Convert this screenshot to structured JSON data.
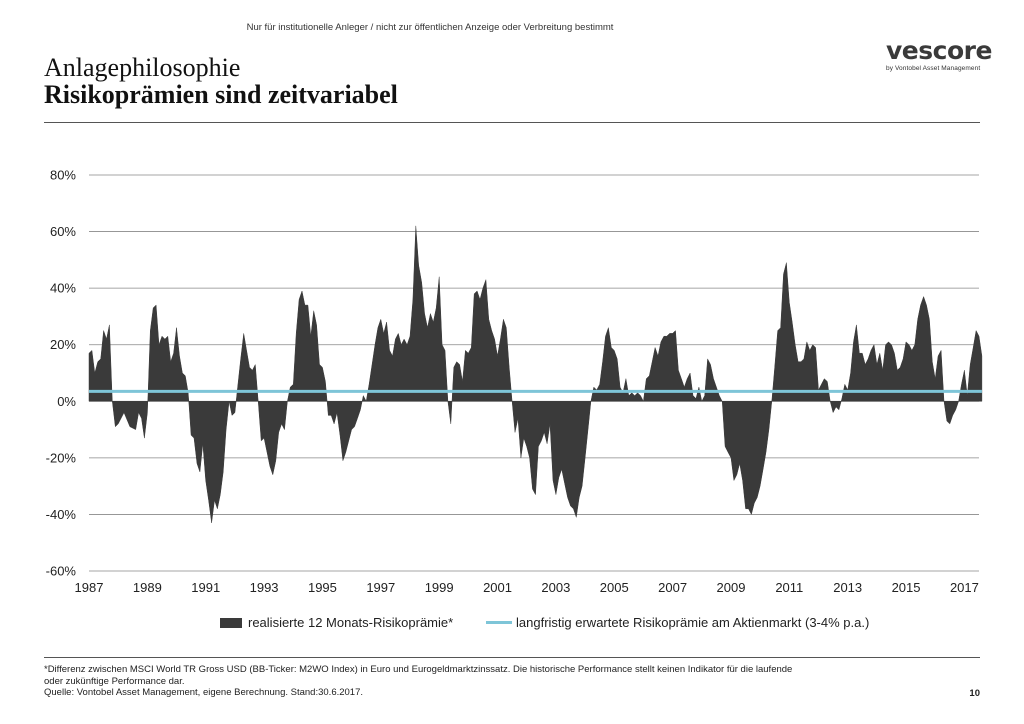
{
  "header": {
    "disclaimer": "Nur für institutionelle Anleger / nicht zur öffentlichen Anzeige oder Verbreitung bestimmt",
    "title": "Anlagephilosophie",
    "subtitle": "Risikoprämien sind zeitvariabel"
  },
  "logo": {
    "wordmark": "vescore",
    "tagline": "by Vontobel Asset Management"
  },
  "footer": {
    "footnote_line1": "*Differenz zwischen MSCI World TR Gross USD (BB-Ticker: M2WO Index) in Euro und Eurogeldmarktzinssatz. Die historische Performance stellt keinen Indikator für die laufende",
    "footnote_line2": "oder zukünftige Performance dar.",
    "source": "Quelle: Vontobel Asset Management, eigene Berechnung. Stand:30.6.2017.",
    "page_number": "10"
  },
  "colors": {
    "area": "#3a3a3a",
    "line": "#7ec5d8",
    "grid": "#888888"
  },
  "chart_data": {
    "type": "area",
    "title": "",
    "xlabel": "",
    "ylabel": "",
    "xlim": [
      1987,
      2017.5
    ],
    "ylim": [
      -60,
      80
    ],
    "x_ticks": [
      1987,
      1989,
      1991,
      1993,
      1995,
      1997,
      1999,
      2001,
      2003,
      2005,
      2007,
      2009,
      2011,
      2013,
      2015,
      2017
    ],
    "y_ticks": [
      -60,
      -40,
      -20,
      0,
      20,
      40,
      60,
      80
    ],
    "y_tick_labels": [
      "-60%",
      "-40%",
      "-20%",
      "0%",
      "20%",
      "40%",
      "60%",
      "80%"
    ],
    "grid": true,
    "legend_position": "bottom",
    "series": [
      {
        "name": "realisierte 12 Monats-Risikoprämie*",
        "type": "area",
        "points": [
          [
            1987.0,
            17
          ],
          [
            1987.1,
            18
          ],
          [
            1987.2,
            10
          ],
          [
            1987.3,
            14
          ],
          [
            1987.4,
            15
          ],
          [
            1987.5,
            25
          ],
          [
            1987.6,
            22
          ],
          [
            1987.7,
            27
          ],
          [
            1987.8,
            0
          ],
          [
            1987.9,
            -9
          ],
          [
            1988.0,
            -8
          ],
          [
            1988.2,
            -4
          ],
          [
            1988.4,
            -9
          ],
          [
            1988.6,
            -10
          ],
          [
            1988.7,
            -4
          ],
          [
            1988.8,
            -6
          ],
          [
            1988.9,
            -13
          ],
          [
            1989.0,
            -4
          ],
          [
            1989.1,
            25
          ],
          [
            1989.2,
            33
          ],
          [
            1989.3,
            34
          ],
          [
            1989.4,
            20
          ],
          [
            1989.5,
            23
          ],
          [
            1989.6,
            22
          ],
          [
            1989.7,
            23
          ],
          [
            1989.8,
            14
          ],
          [
            1989.9,
            17
          ],
          [
            1990.0,
            26
          ],
          [
            1990.1,
            16
          ],
          [
            1990.2,
            10
          ],
          [
            1990.3,
            9
          ],
          [
            1990.4,
            3
          ],
          [
            1990.5,
            -12
          ],
          [
            1990.6,
            -13
          ],
          [
            1990.7,
            -22
          ],
          [
            1990.8,
            -25
          ],
          [
            1990.9,
            -15
          ],
          [
            1991.0,
            -28
          ],
          [
            1991.1,
            -35
          ],
          [
            1991.2,
            -43
          ],
          [
            1991.3,
            -35
          ],
          [
            1991.4,
            -38
          ],
          [
            1991.5,
            -33
          ],
          [
            1991.6,
            -25
          ],
          [
            1991.7,
            -10
          ],
          [
            1991.8,
            0
          ],
          [
            1991.9,
            -5
          ],
          [
            1992.0,
            -4
          ],
          [
            1992.2,
            15
          ],
          [
            1992.3,
            24
          ],
          [
            1992.4,
            18
          ],
          [
            1992.5,
            12
          ],
          [
            1992.6,
            11
          ],
          [
            1992.7,
            13
          ],
          [
            1992.8,
            0
          ],
          [
            1992.9,
            -14
          ],
          [
            1993.0,
            -13
          ],
          [
            1993.2,
            -23
          ],
          [
            1993.3,
            -26
          ],
          [
            1993.4,
            -21
          ],
          [
            1993.5,
            -11
          ],
          [
            1993.6,
            -8
          ],
          [
            1993.7,
            -10
          ],
          [
            1993.8,
            0
          ],
          [
            1993.9,
            5
          ],
          [
            1994.0,
            6
          ],
          [
            1994.1,
            24
          ],
          [
            1994.2,
            36
          ],
          [
            1994.3,
            39
          ],
          [
            1994.4,
            34
          ],
          [
            1994.5,
            34
          ],
          [
            1994.6,
            23
          ],
          [
            1994.7,
            32
          ],
          [
            1994.8,
            27
          ],
          [
            1994.9,
            13
          ],
          [
            1995.0,
            12
          ],
          [
            1995.1,
            7
          ],
          [
            1995.2,
            -5
          ],
          [
            1995.3,
            -5
          ],
          [
            1995.4,
            -8
          ],
          [
            1995.5,
            -4
          ],
          [
            1995.6,
            -12
          ],
          [
            1995.7,
            -21
          ],
          [
            1995.8,
            -18
          ],
          [
            1995.9,
            -14
          ],
          [
            1996.0,
            -10
          ],
          [
            1996.1,
            -9
          ],
          [
            1996.2,
            -6
          ],
          [
            1996.3,
            -3
          ],
          [
            1996.4,
            2
          ],
          [
            1996.5,
            0
          ],
          [
            1996.6,
            6
          ],
          [
            1996.8,
            20
          ],
          [
            1996.9,
            26
          ],
          [
            1997.0,
            29
          ],
          [
            1997.1,
            24
          ],
          [
            1997.2,
            28
          ],
          [
            1997.3,
            18
          ],
          [
            1997.4,
            16
          ],
          [
            1997.5,
            22
          ],
          [
            1997.6,
            24
          ],
          [
            1997.7,
            20
          ],
          [
            1997.8,
            22
          ],
          [
            1997.9,
            20
          ],
          [
            1998.0,
            23
          ],
          [
            1998.1,
            36
          ],
          [
            1998.2,
            62
          ],
          [
            1998.3,
            48
          ],
          [
            1998.4,
            42
          ],
          [
            1998.5,
            31
          ],
          [
            1998.6,
            26
          ],
          [
            1998.7,
            31
          ],
          [
            1998.8,
            28
          ],
          [
            1998.9,
            33
          ],
          [
            1999.0,
            44
          ],
          [
            1999.1,
            20
          ],
          [
            1999.2,
            18
          ],
          [
            1999.3,
            0
          ],
          [
            1999.4,
            -8
          ],
          [
            1999.5,
            12
          ],
          [
            1999.6,
            14
          ],
          [
            1999.7,
            13
          ],
          [
            1999.8,
            7
          ],
          [
            1999.9,
            18
          ],
          [
            2000.0,
            17
          ],
          [
            2000.1,
            19
          ],
          [
            2000.2,
            38
          ],
          [
            2000.3,
            39
          ],
          [
            2000.4,
            36
          ],
          [
            2000.5,
            40
          ],
          [
            2000.6,
            43
          ],
          [
            2000.7,
            29
          ],
          [
            2000.8,
            25
          ],
          [
            2000.9,
            22
          ],
          [
            2001.0,
            16
          ],
          [
            2001.1,
            22
          ],
          [
            2001.2,
            29
          ],
          [
            2001.3,
            26
          ],
          [
            2001.4,
            12
          ],
          [
            2001.5,
            0
          ],
          [
            2001.6,
            -11
          ],
          [
            2001.7,
            -6
          ],
          [
            2001.8,
            -20
          ],
          [
            2001.9,
            -13
          ],
          [
            2002.0,
            -16
          ],
          [
            2002.1,
            -20
          ],
          [
            2002.2,
            -31
          ],
          [
            2002.3,
            -33
          ],
          [
            2002.4,
            -16
          ],
          [
            2002.5,
            -14
          ],
          [
            2002.6,
            -11
          ],
          [
            2002.7,
            -15
          ],
          [
            2002.8,
            -8
          ],
          [
            2002.9,
            -28
          ],
          [
            2003.0,
            -33
          ],
          [
            2003.1,
            -27
          ],
          [
            2003.2,
            -24
          ],
          [
            2003.3,
            -29
          ],
          [
            2003.4,
            -34
          ],
          [
            2003.5,
            -37
          ],
          [
            2003.6,
            -38
          ],
          [
            2003.7,
            -41
          ],
          [
            2003.8,
            -34
          ],
          [
            2003.9,
            -30
          ],
          [
            2004.0,
            -20
          ],
          [
            2004.1,
            -10
          ],
          [
            2004.2,
            0
          ],
          [
            2004.3,
            5
          ],
          [
            2004.4,
            4
          ],
          [
            2004.5,
            6
          ],
          [
            2004.6,
            14
          ],
          [
            2004.7,
            23
          ],
          [
            2004.8,
            26
          ],
          [
            2004.9,
            19
          ],
          [
            2005.0,
            18
          ],
          [
            2005.1,
            15
          ],
          [
            2005.2,
            5
          ],
          [
            2005.3,
            3
          ],
          [
            2005.4,
            8
          ],
          [
            2005.5,
            2
          ],
          [
            2005.6,
            3
          ],
          [
            2005.7,
            2
          ],
          [
            2005.8,
            3
          ],
          [
            2005.9,
            2
          ],
          [
            2006.0,
            0
          ],
          [
            2006.1,
            8
          ],
          [
            2006.2,
            9
          ],
          [
            2006.3,
            14
          ],
          [
            2006.4,
            19
          ],
          [
            2006.5,
            16
          ],
          [
            2006.6,
            21
          ],
          [
            2006.7,
            23
          ],
          [
            2006.8,
            23
          ],
          [
            2006.9,
            24
          ],
          [
            2007.0,
            24
          ],
          [
            2007.1,
            25
          ],
          [
            2007.2,
            11
          ],
          [
            2007.3,
            8
          ],
          [
            2007.4,
            5
          ],
          [
            2007.5,
            8
          ],
          [
            2007.6,
            10
          ],
          [
            2007.7,
            2
          ],
          [
            2007.8,
            1
          ],
          [
            2007.9,
            5
          ],
          [
            2008.0,
            0
          ],
          [
            2008.1,
            2
          ],
          [
            2008.2,
            15
          ],
          [
            2008.3,
            13
          ],
          [
            2008.4,
            8
          ],
          [
            2008.5,
            5
          ],
          [
            2008.6,
            2
          ],
          [
            2008.7,
            0
          ],
          [
            2008.8,
            -16
          ],
          [
            2008.9,
            -18
          ],
          [
            2009.0,
            -20
          ],
          [
            2009.1,
            -28
          ],
          [
            2009.2,
            -26
          ],
          [
            2009.3,
            -22
          ],
          [
            2009.4,
            -28
          ],
          [
            2009.5,
            -38
          ],
          [
            2009.6,
            -38
          ],
          [
            2009.7,
            -40
          ],
          [
            2009.8,
            -36
          ],
          [
            2009.9,
            -34
          ],
          [
            2010.0,
            -30
          ],
          [
            2010.1,
            -24
          ],
          [
            2010.2,
            -18
          ],
          [
            2010.3,
            -10
          ],
          [
            2010.4,
            0
          ],
          [
            2010.5,
            12
          ],
          [
            2010.6,
            25
          ],
          [
            2010.7,
            26
          ],
          [
            2010.8,
            45
          ],
          [
            2010.9,
            49
          ],
          [
            2011.0,
            35
          ],
          [
            2011.1,
            28
          ],
          [
            2011.2,
            20
          ],
          [
            2011.3,
            14
          ],
          [
            2011.4,
            14
          ],
          [
            2011.5,
            15
          ],
          [
            2011.6,
            21
          ],
          [
            2011.7,
            18
          ],
          [
            2011.8,
            20
          ],
          [
            2011.9,
            19
          ],
          [
            2012.0,
            4
          ],
          [
            2012.1,
            6
          ],
          [
            2012.2,
            8
          ],
          [
            2012.3,
            7
          ],
          [
            2012.4,
            0
          ],
          [
            2012.5,
            -4
          ],
          [
            2012.6,
            -2
          ],
          [
            2012.7,
            -3
          ],
          [
            2012.8,
            1
          ],
          [
            2012.9,
            6
          ],
          [
            2013.0,
            4
          ],
          [
            2013.1,
            10
          ],
          [
            2013.2,
            21
          ],
          [
            2013.3,
            27
          ],
          [
            2013.4,
            17
          ],
          [
            2013.5,
            17
          ],
          [
            2013.6,
            13
          ],
          [
            2013.7,
            15
          ],
          [
            2013.8,
            18
          ],
          [
            2013.9,
            20
          ],
          [
            2014.0,
            13
          ],
          [
            2014.1,
            17
          ],
          [
            2014.2,
            11
          ],
          [
            2014.3,
            20
          ],
          [
            2014.4,
            21
          ],
          [
            2014.5,
            20
          ],
          [
            2014.6,
            17
          ],
          [
            2014.7,
            11
          ],
          [
            2014.8,
            12
          ],
          [
            2014.9,
            15
          ],
          [
            2015.0,
            21
          ],
          [
            2015.1,
            20
          ],
          [
            2015.2,
            18
          ],
          [
            2015.3,
            20
          ],
          [
            2015.4,
            29
          ],
          [
            2015.5,
            34
          ],
          [
            2015.6,
            37
          ],
          [
            2015.7,
            34
          ],
          [
            2015.8,
            29
          ],
          [
            2015.9,
            14
          ],
          [
            2016.0,
            8
          ],
          [
            2016.1,
            16
          ],
          [
            2016.2,
            18
          ],
          [
            2016.3,
            0
          ],
          [
            2016.4,
            -7
          ],
          [
            2016.5,
            -8
          ],
          [
            2016.6,
            -5
          ],
          [
            2016.7,
            -3
          ],
          [
            2016.8,
            0
          ],
          [
            2016.9,
            6
          ],
          [
            2017.0,
            11
          ],
          [
            2017.1,
            2
          ],
          [
            2017.2,
            13
          ],
          [
            2017.3,
            19
          ],
          [
            2017.4,
            25
          ],
          [
            2017.5,
            23
          ],
          [
            2017.6,
            16
          ]
        ]
      },
      {
        "name": "langfristig erwartete Risikoprämie am Aktienmarkt (3-4% p.a.)",
        "type": "line",
        "points": [
          [
            1987.0,
            3.5
          ],
          [
            2017.6,
            3.5
          ]
        ]
      }
    ]
  }
}
